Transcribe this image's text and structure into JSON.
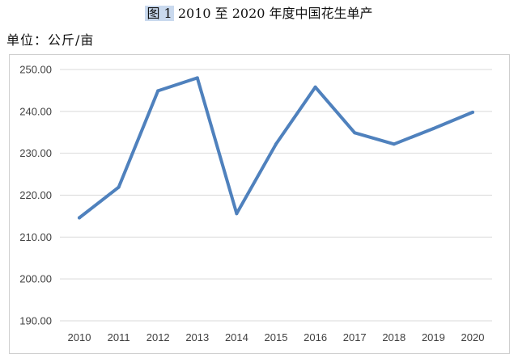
{
  "figure": {
    "label": "图 1",
    "title": "2010 至 2020 年度中国花生单产",
    "unit": "单位：公斤/亩"
  },
  "colors": {
    "series": "#4f81bd",
    "grid": "#d9d9d9",
    "frame": "#cfcfcf"
  },
  "chart_data": {
    "type": "line",
    "title": "2010 至 2020 年度中国花生单产",
    "xlabel": "",
    "ylabel": "",
    "categories": [
      "2010",
      "2011",
      "2012",
      "2013",
      "2014",
      "2015",
      "2016",
      "2017",
      "2018",
      "2019",
      "2020"
    ],
    "series": [
      {
        "values": [
          214.6,
          221.9,
          244.9,
          248.0,
          215.6,
          232.2,
          245.8,
          234.9,
          232.2,
          235.9,
          239.8
        ]
      }
    ],
    "ylim": [
      190,
      250
    ],
    "ytick_labels": [
      "190.00",
      "200.00",
      "210.00",
      "220.00",
      "230.00",
      "240.00",
      "250.00"
    ],
    "grid": true,
    "legend": "none"
  }
}
